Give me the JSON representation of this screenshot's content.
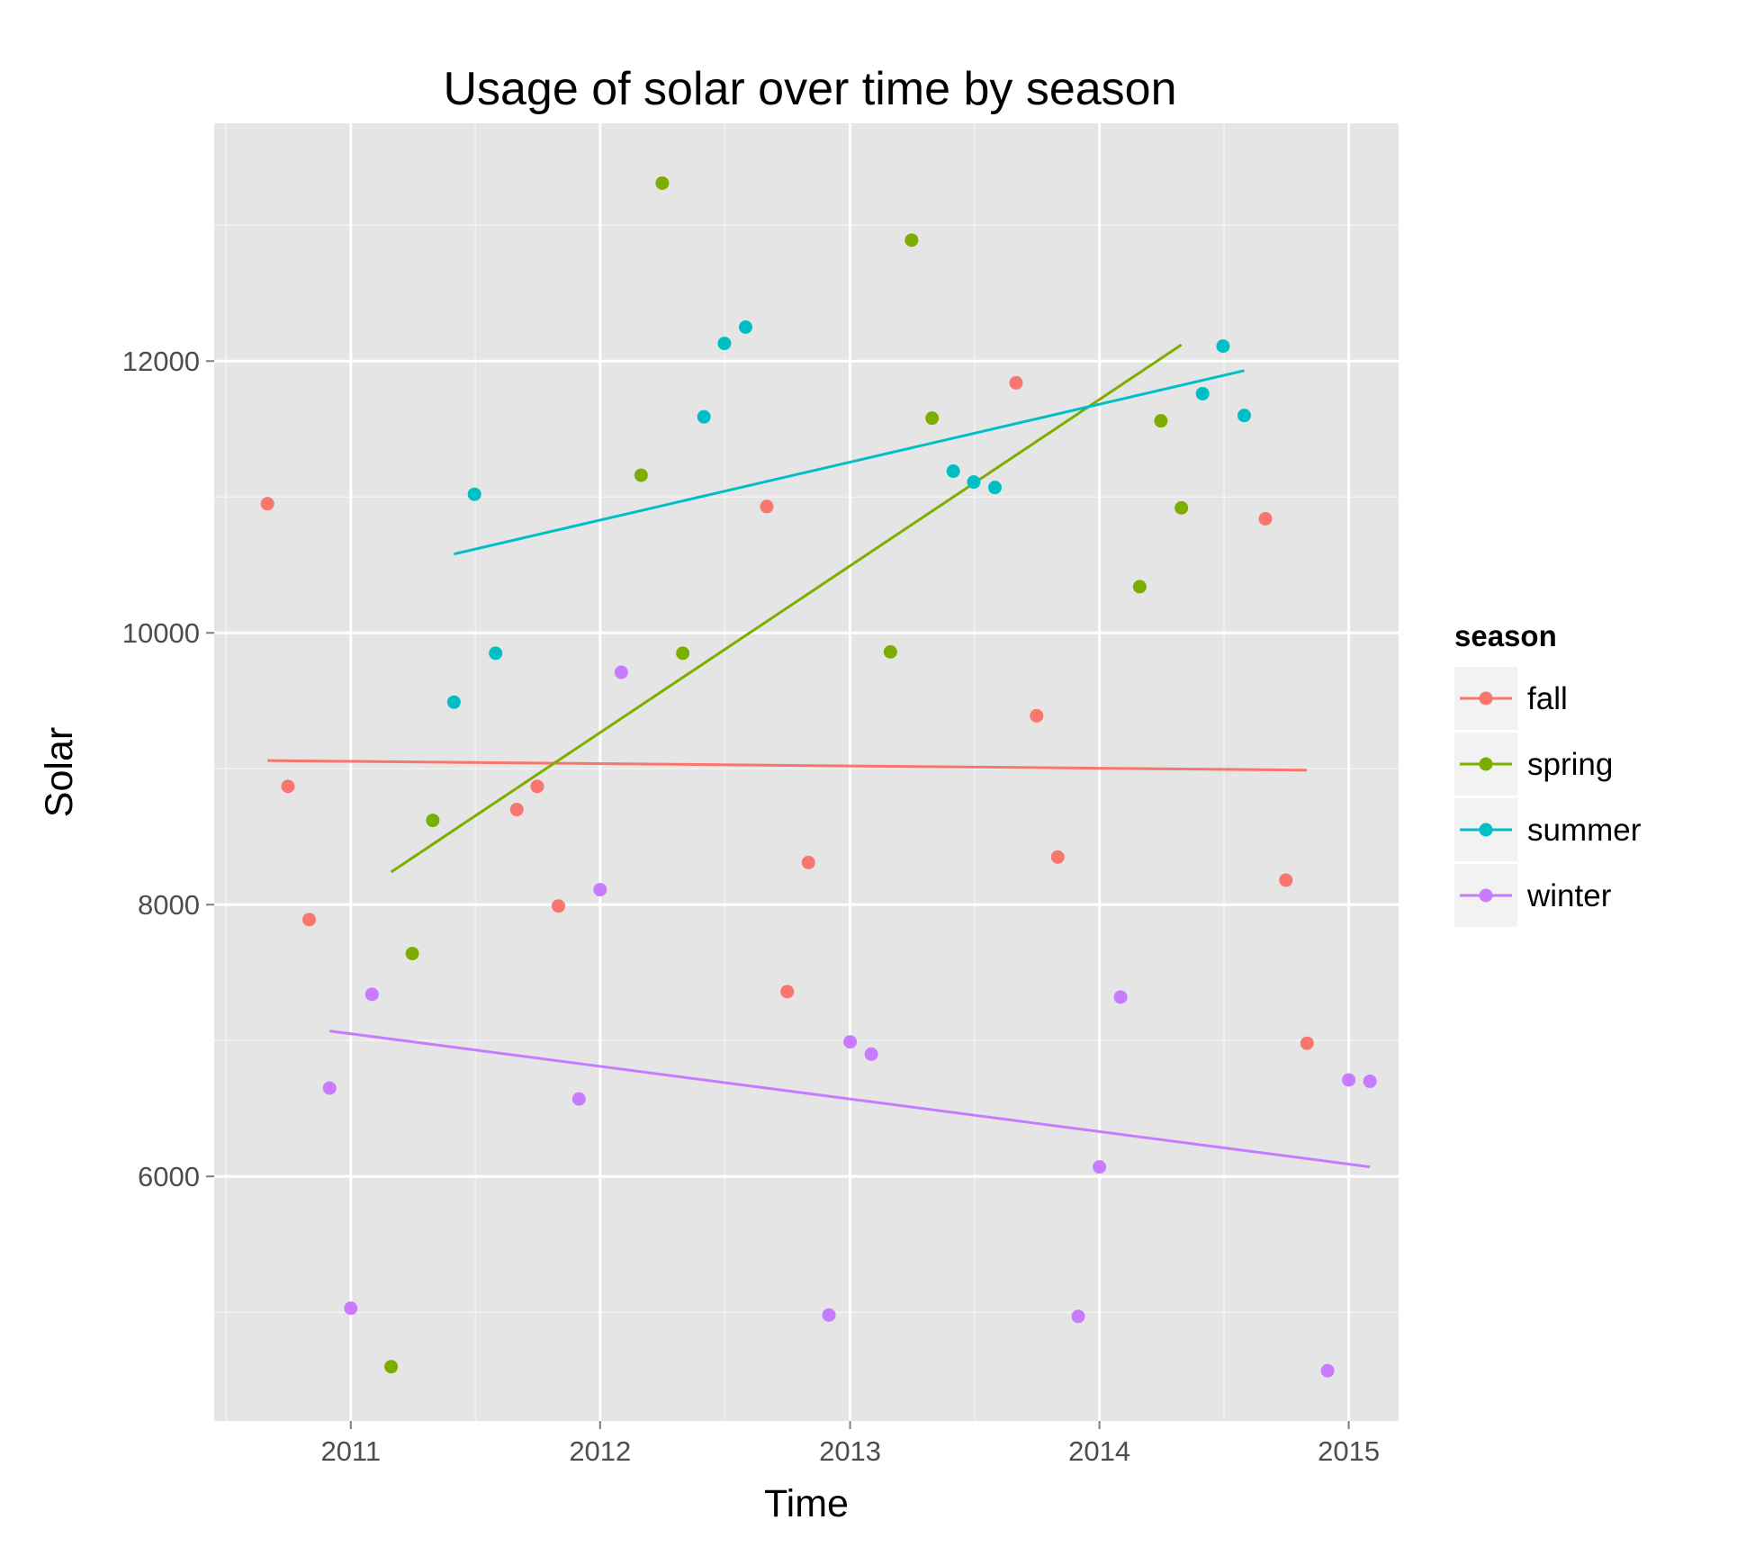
{
  "chart_data": {
    "type": "scatter",
    "title": "Usage of solar over time by season",
    "xlabel": "Time",
    "ylabel": "Solar",
    "xlim": [
      "2010-06-15",
      "2015-03-15"
    ],
    "ylim": [
      4200,
      13750
    ],
    "x_ticks": [
      {
        "date": "2011-01-01",
        "label": "2011"
      },
      {
        "date": "2012-01-01",
        "label": "2012"
      },
      {
        "date": "2013-01-01",
        "label": "2013"
      },
      {
        "date": "2014-01-01",
        "label": "2014"
      },
      {
        "date": "2015-01-01",
        "label": "2015"
      }
    ],
    "y_ticks": [
      {
        "value": 6000,
        "label": "6000"
      },
      {
        "value": 8000,
        "label": "8000"
      },
      {
        "value": 10000,
        "label": "10000"
      },
      {
        "value": 12000,
        "label": "12000"
      }
    ],
    "grid": true,
    "legend": {
      "title": "season",
      "position": "right"
    },
    "series": [
      {
        "name": "fall",
        "color": "#F8766D",
        "points": [
          {
            "x": "2010-09-01",
            "y": 10950
          },
          {
            "x": "2010-10-01",
            "y": 8870
          },
          {
            "x": "2010-11-01",
            "y": 7890
          },
          {
            "x": "2011-09-01",
            "y": 8700
          },
          {
            "x": "2011-10-01",
            "y": 8870
          },
          {
            "x": "2011-11-01",
            "y": 7990
          },
          {
            "x": "2012-09-01",
            "y": 10930
          },
          {
            "x": "2012-10-01",
            "y": 7360
          },
          {
            "x": "2012-11-01",
            "y": 8310
          },
          {
            "x": "2013-09-01",
            "y": 11840
          },
          {
            "x": "2013-10-01",
            "y": 9390
          },
          {
            "x": "2013-11-01",
            "y": 8350
          },
          {
            "x": "2014-09-01",
            "y": 10840
          },
          {
            "x": "2014-10-01",
            "y": 8180
          },
          {
            "x": "2014-11-01",
            "y": 6980
          }
        ],
        "trend": [
          {
            "x": "2010-09-01",
            "y": 9060
          },
          {
            "x": "2014-11-01",
            "y": 8990
          }
        ]
      },
      {
        "name": "spring",
        "color": "#7CAE00",
        "points": [
          {
            "x": "2011-03-01",
            "y": 4600
          },
          {
            "x": "2011-04-01",
            "y": 7640
          },
          {
            "x": "2011-05-01",
            "y": 8620
          },
          {
            "x": "2012-03-01",
            "y": 11160
          },
          {
            "x": "2012-04-01",
            "y": 13310
          },
          {
            "x": "2012-05-01",
            "y": 9850
          },
          {
            "x": "2013-03-01",
            "y": 9860
          },
          {
            "x": "2013-04-01",
            "y": 12890
          },
          {
            "x": "2013-05-01",
            "y": 11580
          },
          {
            "x": "2014-03-01",
            "y": 10340
          },
          {
            "x": "2014-04-01",
            "y": 11560
          },
          {
            "x": "2014-05-01",
            "y": 10920
          }
        ],
        "trend": [
          {
            "x": "2011-03-01",
            "y": 8240
          },
          {
            "x": "2014-05-01",
            "y": 12120
          }
        ]
      },
      {
        "name": "summer",
        "color": "#00BFC4",
        "points": [
          {
            "x": "2011-06-01",
            "y": 9490
          },
          {
            "x": "2011-07-01",
            "y": 11020
          },
          {
            "x": "2011-08-01",
            "y": 9850
          },
          {
            "x": "2012-06-01",
            "y": 11590
          },
          {
            "x": "2012-07-01",
            "y": 12130
          },
          {
            "x": "2012-08-01",
            "y": 12250
          },
          {
            "x": "2013-06-01",
            "y": 11190
          },
          {
            "x": "2013-07-01",
            "y": 11110
          },
          {
            "x": "2013-08-01",
            "y": 11070
          },
          {
            "x": "2014-06-01",
            "y": 11760
          },
          {
            "x": "2014-07-01",
            "y": 12110
          },
          {
            "x": "2014-08-01",
            "y": 11600
          }
        ],
        "trend": [
          {
            "x": "2011-06-01",
            "y": 10580
          },
          {
            "x": "2014-08-01",
            "y": 11930
          }
        ]
      },
      {
        "name": "winter",
        "color": "#C77CFF",
        "points": [
          {
            "x": "2010-12-01",
            "y": 6650
          },
          {
            "x": "2011-01-01",
            "y": 5030
          },
          {
            "x": "2011-02-01",
            "y": 7340
          },
          {
            "x": "2011-12-01",
            "y": 6570
          },
          {
            "x": "2012-01-01",
            "y": 8110
          },
          {
            "x": "2012-02-01",
            "y": 9710
          },
          {
            "x": "2012-12-01",
            "y": 4980
          },
          {
            "x": "2013-01-01",
            "y": 6990
          },
          {
            "x": "2013-02-01",
            "y": 6900
          },
          {
            "x": "2013-12-01",
            "y": 4970
          },
          {
            "x": "2014-01-01",
            "y": 6070
          },
          {
            "x": "2014-02-01",
            "y": 7320
          },
          {
            "x": "2014-12-01",
            "y": 4570
          },
          {
            "x": "2015-01-01",
            "y": 6710
          },
          {
            "x": "2015-02-01",
            "y": 6700
          }
        ],
        "trend": [
          {
            "x": "2010-12-01",
            "y": 7070
          },
          {
            "x": "2015-02-01",
            "y": 6070
          }
        ]
      }
    ]
  }
}
